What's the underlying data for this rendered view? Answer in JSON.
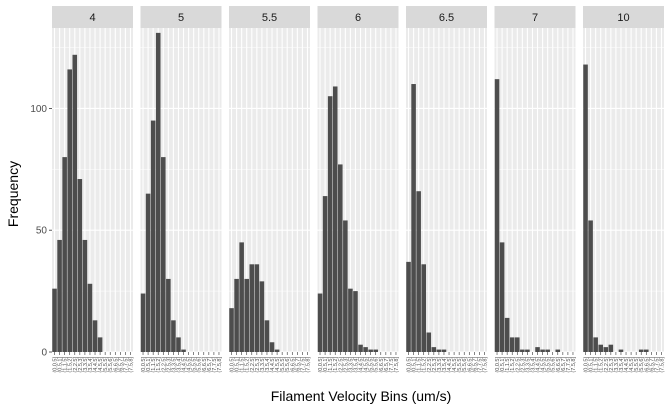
{
  "chart_data": {
    "type": "bar",
    "xlabel": "Filament Velocity Bins (um/s)",
    "ylabel": "Frequency",
    "ylim": [
      0,
      133
    ],
    "yticks": [
      0,
      50,
      100
    ],
    "grid": true,
    "bin_labels": [
      "(0,0.5]",
      "(0.5,1]",
      "(1,1.5]",
      "(1.5,2]",
      "(2,2.5]",
      "(2.5,3]",
      "(3,3.5]",
      "(3.5,4]",
      "(4,4.5]",
      "(4.5,5]",
      "(5,5.5]",
      "(5.5,6]",
      "(6,6.5]",
      "(6.5,7]",
      "(7,7.5]",
      "(7.5,8]"
    ],
    "facets": [
      {
        "label": "4",
        "values": [
          26,
          46,
          80,
          116,
          122,
          71,
          46,
          28,
          13,
          6,
          0,
          0,
          0,
          0,
          0,
          0
        ]
      },
      {
        "label": "5",
        "values": [
          24,
          65,
          95,
          131,
          80,
          30,
          13,
          6,
          1,
          0,
          0,
          0,
          0,
          0,
          0,
          0
        ]
      },
      {
        "label": "5.5",
        "values": [
          18,
          30,
          45,
          30,
          36,
          36,
          29,
          13,
          4,
          1,
          0,
          0,
          0,
          0,
          0,
          0
        ]
      },
      {
        "label": "6",
        "values": [
          24,
          64,
          105,
          109,
          77,
          54,
          26,
          25,
          3,
          2,
          1,
          1,
          0,
          0,
          0,
          0
        ]
      },
      {
        "label": "6.5",
        "values": [
          37,
          110,
          66,
          36,
          8,
          2,
          1,
          1,
          0,
          0,
          0,
          0,
          0,
          0,
          0,
          0
        ]
      },
      {
        "label": "7",
        "values": [
          112,
          45,
          14,
          6,
          6,
          1,
          1,
          0,
          2,
          1,
          1,
          0,
          1,
          0,
          0,
          0
        ]
      },
      {
        "label": "10",
        "values": [
          118,
          54,
          6,
          3,
          2,
          3,
          0,
          1,
          0,
          0,
          0,
          1,
          1,
          0,
          0,
          0
        ]
      }
    ]
  }
}
